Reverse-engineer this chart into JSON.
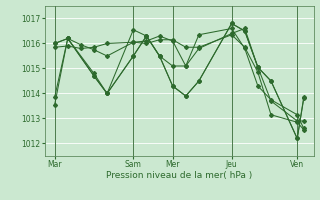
{
  "xlabel": "Pression niveau de la mer( hPa )",
  "bg_color": "#cbe8d0",
  "grid_color": "#ffffff",
  "line_color": "#2d6a2d",
  "vline_color": "#4a7a4a",
  "yticks": [
    1012,
    1013,
    1014,
    1015,
    1016,
    1017
  ],
  "ylim": [
    1011.5,
    1017.5
  ],
  "xlim": [
    -0.5,
    40.5
  ],
  "day_labels": [
    "Mar",
    "Sam",
    "Mer",
    "Jeu",
    "Ven"
  ],
  "day_positions": [
    1,
    13,
    19,
    28,
    38
  ],
  "series": [
    {
      "x": [
        1,
        3,
        5,
        7,
        9,
        13,
        15,
        17,
        19,
        21,
        23,
        28,
        30,
        32,
        34,
        38,
        39
      ],
      "y": [
        1013.55,
        1016.2,
        1015.95,
        1015.75,
        1015.5,
        1016.05,
        1016.1,
        1016.3,
        1016.1,
        1015.1,
        1016.35,
        1016.6,
        1015.8,
        1014.3,
        1013.75,
        1013.15,
        1012.6
      ]
    },
    {
      "x": [
        1,
        3,
        5,
        7,
        9,
        13,
        15,
        17,
        19,
        21,
        23,
        28,
        30,
        32,
        34,
        38,
        39
      ],
      "y": [
        1015.85,
        1015.9,
        1015.8,
        1015.85,
        1016.0,
        1016.05,
        1016.0,
        1016.15,
        1016.15,
        1015.85,
        1015.85,
        1016.35,
        1015.85,
        1014.85,
        1013.15,
        1012.85,
        1012.55
      ]
    },
    {
      "x": [
        1,
        3,
        7,
        9,
        13,
        15,
        17,
        19,
        21,
        23,
        28,
        30,
        32,
        34,
        38,
        39
      ],
      "y": [
        1016.0,
        1016.2,
        1014.7,
        1014.0,
        1016.55,
        1016.3,
        1015.5,
        1014.3,
        1013.9,
        1014.5,
        1016.8,
        1016.5,
        1015.05,
        1014.5,
        1012.2,
        1013.8
      ]
    },
    {
      "x": [
        1,
        3,
        7,
        9,
        13,
        15,
        17,
        19,
        21,
        23,
        28,
        30,
        32,
        34,
        38,
        39
      ],
      "y": [
        1016.0,
        1016.2,
        1014.7,
        1014.0,
        1015.5,
        1016.3,
        1015.5,
        1015.1,
        1015.1,
        1015.8,
        1016.4,
        1016.6,
        1015.05,
        1013.7,
        1012.9,
        1012.9
      ]
    },
    {
      "x": [
        1,
        3,
        7,
        9,
        13,
        15,
        17,
        19,
        21,
        23,
        28,
        30,
        32,
        34,
        38,
        39
      ],
      "y": [
        1013.85,
        1016.2,
        1014.8,
        1014.0,
        1015.5,
        1016.3,
        1015.5,
        1014.3,
        1013.9,
        1014.5,
        1016.8,
        1016.5,
        1015.05,
        1014.5,
        1012.2,
        1013.85
      ]
    }
  ]
}
